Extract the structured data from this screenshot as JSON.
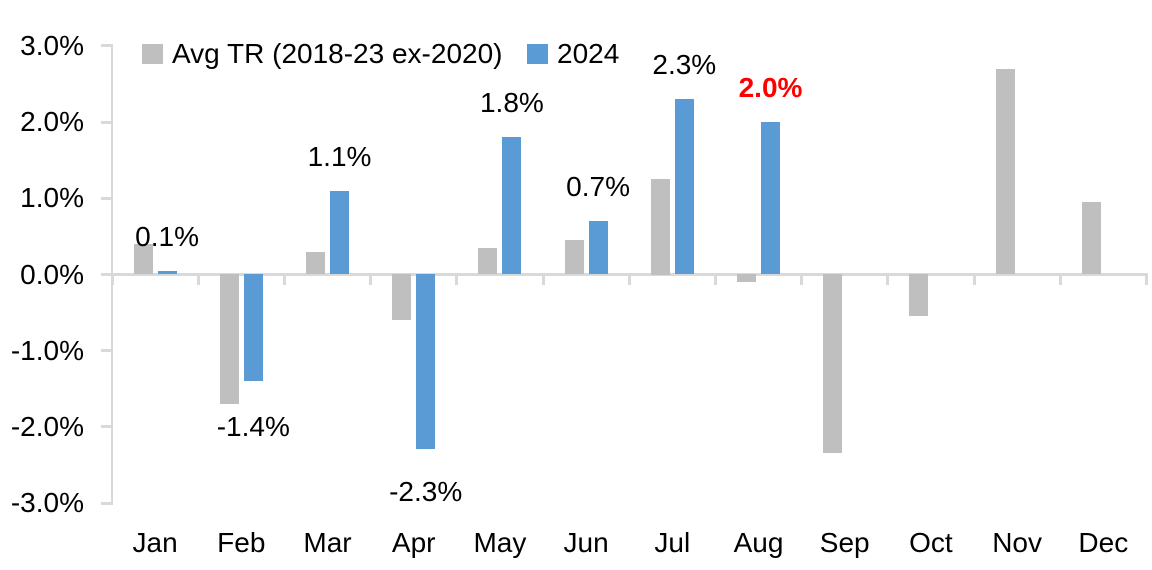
{
  "chart_data": {
    "type": "bar",
    "title": "",
    "categories": [
      "Jan",
      "Feb",
      "Mar",
      "Apr",
      "May",
      "Jun",
      "Jul",
      "Aug",
      "Sep",
      "Oct",
      "Nov",
      "Dec"
    ],
    "series": [
      {
        "name": "Avg TR (2018-23 ex-2020)",
        "color": "#BFBFBF",
        "values": [
          0.4,
          -1.7,
          0.3,
          -0.6,
          0.35,
          0.45,
          1.25,
          -0.1,
          -2.35,
          -0.55,
          2.7,
          0.95
        ]
      },
      {
        "name": "2024",
        "color": "#5B9BD5",
        "values": [
          0.05,
          -1.4,
          1.1,
          -2.3,
          1.8,
          0.7,
          2.3,
          2.0,
          null,
          null,
          null,
          null
        ]
      }
    ],
    "data_labels": [
      {
        "category": "Jan",
        "series": "2024",
        "text": "0.1%",
        "emphasis": false
      },
      {
        "category": "Feb",
        "series": "2024",
        "text": "-1.4%",
        "emphasis": false
      },
      {
        "category": "Mar",
        "series": "2024",
        "text": "1.1%",
        "emphasis": false
      },
      {
        "category": "Apr",
        "series": "2024",
        "text": "-2.3%",
        "emphasis": false
      },
      {
        "category": "May",
        "series": "2024",
        "text": "1.8%",
        "emphasis": false
      },
      {
        "category": "Jun",
        "series": "2024",
        "text": "0.7%",
        "emphasis": false
      },
      {
        "category": "Jul",
        "series": "2024",
        "text": "2.3%",
        "emphasis": false
      },
      {
        "category": "Aug",
        "series": "2024",
        "text": "2.0%",
        "emphasis": true
      }
    ],
    "y_axis": {
      "tick_labels": [
        "3.0%",
        "2.0%",
        "1.0%",
        "0.0%",
        "-1.0%",
        "-2.0%",
        "-3.0%"
      ],
      "tick_values": [
        3,
        2,
        1,
        0,
        -1,
        -2,
        -3
      ],
      "ylim": [
        -3,
        3
      ],
      "format": "percent"
    },
    "xlabel": "",
    "ylabel": "",
    "grid": false,
    "legend": {
      "position": "top",
      "entries": [
        {
          "label": "Avg TR (2018-23 ex-2020)",
          "color": "#BFBFBF"
        },
        {
          "label": "2024",
          "color": "#5B9BD5"
        }
      ]
    },
    "colors": {
      "axis": "#D9D9D9",
      "text": "#000000",
      "highlight": "#FF0000",
      "background": "#FFFFFF"
    }
  }
}
